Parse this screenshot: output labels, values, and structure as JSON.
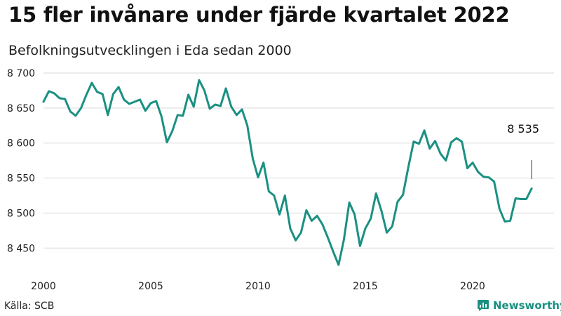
{
  "title": "15 fler invånare under fjärde kvartalet 2022",
  "subtitle": "Befolkningsutvecklingen i Eda sedan 2000",
  "source": "Källa: SCB",
  "brand": {
    "name": "Newsworthy",
    "color": "#1a9082"
  },
  "chart_data": {
    "type": "line",
    "title": "15 fler invånare under fjärde kvartalet 2022",
    "subtitle": "Befolkningsutvecklingen i Eda sedan 2000",
    "xlabel": "",
    "ylabel": "",
    "xlim": [
      2000,
      2023.2
    ],
    "ylim": [
      8420,
      8710
    ],
    "x_ticks": [
      2000,
      2005,
      2010,
      2015,
      2020
    ],
    "x_tick_labels": [
      "2000",
      "2005",
      "2010",
      "2015",
      "2020"
    ],
    "y_ticks": [
      8450,
      8500,
      8550,
      8600,
      8650,
      8700
    ],
    "y_tick_labels": [
      "8 450",
      "8 500",
      "8 550",
      "8 600",
      "8 650",
      "8 700"
    ],
    "grid": "horizontal",
    "line_color": "#1a9082",
    "annotation": {
      "text": "8 535",
      "x": 2022.75,
      "y": 8535
    },
    "series": [
      {
        "values": [
          {
            "x": 2000.0,
            "y": 8659
          },
          {
            "x": 2000.25,
            "y": 8674
          },
          {
            "x": 2000.5,
            "y": 8671
          },
          {
            "x": 2000.75,
            "y": 8664
          },
          {
            "x": 2001.0,
            "y": 8663
          },
          {
            "x": 2001.25,
            "y": 8645
          },
          {
            "x": 2001.5,
            "y": 8639
          },
          {
            "x": 2001.75,
            "y": 8650
          },
          {
            "x": 2002.0,
            "y": 8669
          },
          {
            "x": 2002.25,
            "y": 8686
          },
          {
            "x": 2002.5,
            "y": 8673
          },
          {
            "x": 2002.75,
            "y": 8670
          },
          {
            "x": 2003.0,
            "y": 8640
          },
          {
            "x": 2003.25,
            "y": 8670
          },
          {
            "x": 2003.5,
            "y": 8680
          },
          {
            "x": 2003.75,
            "y": 8662
          },
          {
            "x": 2004.0,
            "y": 8656
          },
          {
            "x": 2004.25,
            "y": 8659
          },
          {
            "x": 2004.5,
            "y": 8662
          },
          {
            "x": 2004.75,
            "y": 8646
          },
          {
            "x": 2005.0,
            "y": 8657
          },
          {
            "x": 2005.25,
            "y": 8660
          },
          {
            "x": 2005.5,
            "y": 8638
          },
          {
            "x": 2005.75,
            "y": 8601
          },
          {
            "x": 2006.0,
            "y": 8617
          },
          {
            "x": 2006.25,
            "y": 8640
          },
          {
            "x": 2006.5,
            "y": 8639
          },
          {
            "x": 2006.75,
            "y": 8669
          },
          {
            "x": 2007.0,
            "y": 8652
          },
          {
            "x": 2007.25,
            "y": 8690
          },
          {
            "x": 2007.5,
            "y": 8675
          },
          {
            "x": 2007.75,
            "y": 8649
          },
          {
            "x": 2008.0,
            "y": 8655
          },
          {
            "x": 2008.25,
            "y": 8653
          },
          {
            "x": 2008.5,
            "y": 8678
          },
          {
            "x": 2008.75,
            "y": 8652
          },
          {
            "x": 2009.0,
            "y": 8640
          },
          {
            "x": 2009.25,
            "y": 8648
          },
          {
            "x": 2009.5,
            "y": 8625
          },
          {
            "x": 2009.75,
            "y": 8578
          },
          {
            "x": 2010.0,
            "y": 8551
          },
          {
            "x": 2010.25,
            "y": 8572
          },
          {
            "x": 2010.5,
            "y": 8531
          },
          {
            "x": 2010.75,
            "y": 8525
          },
          {
            "x": 2011.0,
            "y": 8498
          },
          {
            "x": 2011.25,
            "y": 8525
          },
          {
            "x": 2011.5,
            "y": 8478
          },
          {
            "x": 2011.75,
            "y": 8461
          },
          {
            "x": 2012.0,
            "y": 8472
          },
          {
            "x": 2012.25,
            "y": 8504
          },
          {
            "x": 2012.5,
            "y": 8489
          },
          {
            "x": 2012.75,
            "y": 8496
          },
          {
            "x": 2013.0,
            "y": 8484
          },
          {
            "x": 2013.25,
            "y": 8465
          },
          {
            "x": 2013.5,
            "y": 8445
          },
          {
            "x": 2013.75,
            "y": 8426
          },
          {
            "x": 2014.0,
            "y": 8462
          },
          {
            "x": 2014.25,
            "y": 8515
          },
          {
            "x": 2014.5,
            "y": 8498
          },
          {
            "x": 2014.75,
            "y": 8453
          },
          {
            "x": 2015.0,
            "y": 8478
          },
          {
            "x": 2015.25,
            "y": 8492
          },
          {
            "x": 2015.5,
            "y": 8528
          },
          {
            "x": 2015.75,
            "y": 8503
          },
          {
            "x": 2016.0,
            "y": 8472
          },
          {
            "x": 2016.25,
            "y": 8481
          },
          {
            "x": 2016.5,
            "y": 8516
          },
          {
            "x": 2016.75,
            "y": 8526
          },
          {
            "x": 2017.0,
            "y": 8565
          },
          {
            "x": 2017.25,
            "y": 8602
          },
          {
            "x": 2017.5,
            "y": 8599
          },
          {
            "x": 2017.75,
            "y": 8618
          },
          {
            "x": 2018.0,
            "y": 8592
          },
          {
            "x": 2018.25,
            "y": 8603
          },
          {
            "x": 2018.5,
            "y": 8585
          },
          {
            "x": 2018.75,
            "y": 8575
          },
          {
            "x": 2019.0,
            "y": 8601
          },
          {
            "x": 2019.25,
            "y": 8607
          },
          {
            "x": 2019.5,
            "y": 8602
          },
          {
            "x": 2019.75,
            "y": 8564
          },
          {
            "x": 2020.0,
            "y": 8572
          },
          {
            "x": 2020.25,
            "y": 8559
          },
          {
            "x": 2020.5,
            "y": 8552
          },
          {
            "x": 2020.75,
            "y": 8551
          },
          {
            "x": 2021.0,
            "y": 8545
          },
          {
            "x": 2021.25,
            "y": 8506
          },
          {
            "x": 2021.5,
            "y": 8488
          },
          {
            "x": 2021.75,
            "y": 8489
          },
          {
            "x": 2022.0,
            "y": 8521
          },
          {
            "x": 2022.25,
            "y": 8520
          },
          {
            "x": 2022.5,
            "y": 8520
          },
          {
            "x": 2022.75,
            "y": 8535
          }
        ]
      }
    ]
  }
}
